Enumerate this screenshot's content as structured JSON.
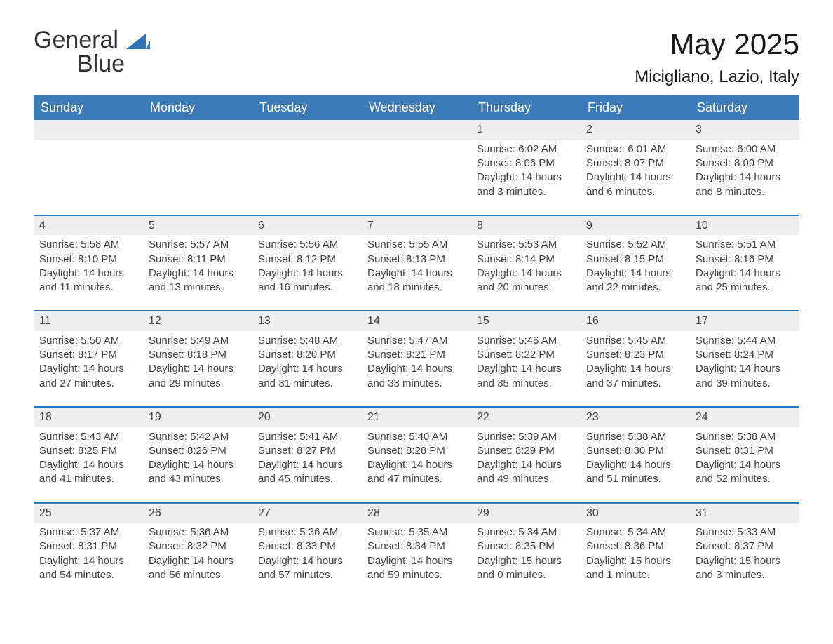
{
  "logo": {
    "word1": "General",
    "word2": "Blue"
  },
  "title": "May 2025",
  "location": "Micigliano, Lazio, Italy",
  "colors": {
    "header_bg": "#3d7ab8",
    "header_text": "#ffffff",
    "accent_border": "#2f76b8",
    "daynum_bg": "#eeeeee",
    "body_text": "#444444",
    "page_bg": "#ffffff"
  },
  "typography": {
    "title_fontsize": 42,
    "location_fontsize": 24,
    "header_fontsize": 18,
    "cell_fontsize": 15,
    "logo_fontsize": 34
  },
  "layout": {
    "columns": 7,
    "rows": 5,
    "week_start": "Sunday"
  },
  "weekdays": [
    "Sunday",
    "Monday",
    "Tuesday",
    "Wednesday",
    "Thursday",
    "Friday",
    "Saturday"
  ],
  "labels": {
    "sunrise": "Sunrise:",
    "sunset": "Sunset:",
    "daylight": "Daylight:"
  },
  "weeks": [
    [
      null,
      null,
      null,
      null,
      {
        "n": "1",
        "sunrise": "6:02 AM",
        "sunset": "8:06 PM",
        "daylight": "14 hours and 3 minutes."
      },
      {
        "n": "2",
        "sunrise": "6:01 AM",
        "sunset": "8:07 PM",
        "daylight": "14 hours and 6 minutes."
      },
      {
        "n": "3",
        "sunrise": "6:00 AM",
        "sunset": "8:09 PM",
        "daylight": "14 hours and 8 minutes."
      }
    ],
    [
      {
        "n": "4",
        "sunrise": "5:58 AM",
        "sunset": "8:10 PM",
        "daylight": "14 hours and 11 minutes."
      },
      {
        "n": "5",
        "sunrise": "5:57 AM",
        "sunset": "8:11 PM",
        "daylight": "14 hours and 13 minutes."
      },
      {
        "n": "6",
        "sunrise": "5:56 AM",
        "sunset": "8:12 PM",
        "daylight": "14 hours and 16 minutes."
      },
      {
        "n": "7",
        "sunrise": "5:55 AM",
        "sunset": "8:13 PM",
        "daylight": "14 hours and 18 minutes."
      },
      {
        "n": "8",
        "sunrise": "5:53 AM",
        "sunset": "8:14 PM",
        "daylight": "14 hours and 20 minutes."
      },
      {
        "n": "9",
        "sunrise": "5:52 AM",
        "sunset": "8:15 PM",
        "daylight": "14 hours and 22 minutes."
      },
      {
        "n": "10",
        "sunrise": "5:51 AM",
        "sunset": "8:16 PM",
        "daylight": "14 hours and 25 minutes."
      }
    ],
    [
      {
        "n": "11",
        "sunrise": "5:50 AM",
        "sunset": "8:17 PM",
        "daylight": "14 hours and 27 minutes."
      },
      {
        "n": "12",
        "sunrise": "5:49 AM",
        "sunset": "8:18 PM",
        "daylight": "14 hours and 29 minutes."
      },
      {
        "n": "13",
        "sunrise": "5:48 AM",
        "sunset": "8:20 PM",
        "daylight": "14 hours and 31 minutes."
      },
      {
        "n": "14",
        "sunrise": "5:47 AM",
        "sunset": "8:21 PM",
        "daylight": "14 hours and 33 minutes."
      },
      {
        "n": "15",
        "sunrise": "5:46 AM",
        "sunset": "8:22 PM",
        "daylight": "14 hours and 35 minutes."
      },
      {
        "n": "16",
        "sunrise": "5:45 AM",
        "sunset": "8:23 PM",
        "daylight": "14 hours and 37 minutes."
      },
      {
        "n": "17",
        "sunrise": "5:44 AM",
        "sunset": "8:24 PM",
        "daylight": "14 hours and 39 minutes."
      }
    ],
    [
      {
        "n": "18",
        "sunrise": "5:43 AM",
        "sunset": "8:25 PM",
        "daylight": "14 hours and 41 minutes."
      },
      {
        "n": "19",
        "sunrise": "5:42 AM",
        "sunset": "8:26 PM",
        "daylight": "14 hours and 43 minutes."
      },
      {
        "n": "20",
        "sunrise": "5:41 AM",
        "sunset": "8:27 PM",
        "daylight": "14 hours and 45 minutes."
      },
      {
        "n": "21",
        "sunrise": "5:40 AM",
        "sunset": "8:28 PM",
        "daylight": "14 hours and 47 minutes."
      },
      {
        "n": "22",
        "sunrise": "5:39 AM",
        "sunset": "8:29 PM",
        "daylight": "14 hours and 49 minutes."
      },
      {
        "n": "23",
        "sunrise": "5:38 AM",
        "sunset": "8:30 PM",
        "daylight": "14 hours and 51 minutes."
      },
      {
        "n": "24",
        "sunrise": "5:38 AM",
        "sunset": "8:31 PM",
        "daylight": "14 hours and 52 minutes."
      }
    ],
    [
      {
        "n": "25",
        "sunrise": "5:37 AM",
        "sunset": "8:31 PM",
        "daylight": "14 hours and 54 minutes."
      },
      {
        "n": "26",
        "sunrise": "5:36 AM",
        "sunset": "8:32 PM",
        "daylight": "14 hours and 56 minutes."
      },
      {
        "n": "27",
        "sunrise": "5:36 AM",
        "sunset": "8:33 PM",
        "daylight": "14 hours and 57 minutes."
      },
      {
        "n": "28",
        "sunrise": "5:35 AM",
        "sunset": "8:34 PM",
        "daylight": "14 hours and 59 minutes."
      },
      {
        "n": "29",
        "sunrise": "5:34 AM",
        "sunset": "8:35 PM",
        "daylight": "15 hours and 0 minutes."
      },
      {
        "n": "30",
        "sunrise": "5:34 AM",
        "sunset": "8:36 PM",
        "daylight": "15 hours and 1 minute."
      },
      {
        "n": "31",
        "sunrise": "5:33 AM",
        "sunset": "8:37 PM",
        "daylight": "15 hours and 3 minutes."
      }
    ]
  ]
}
